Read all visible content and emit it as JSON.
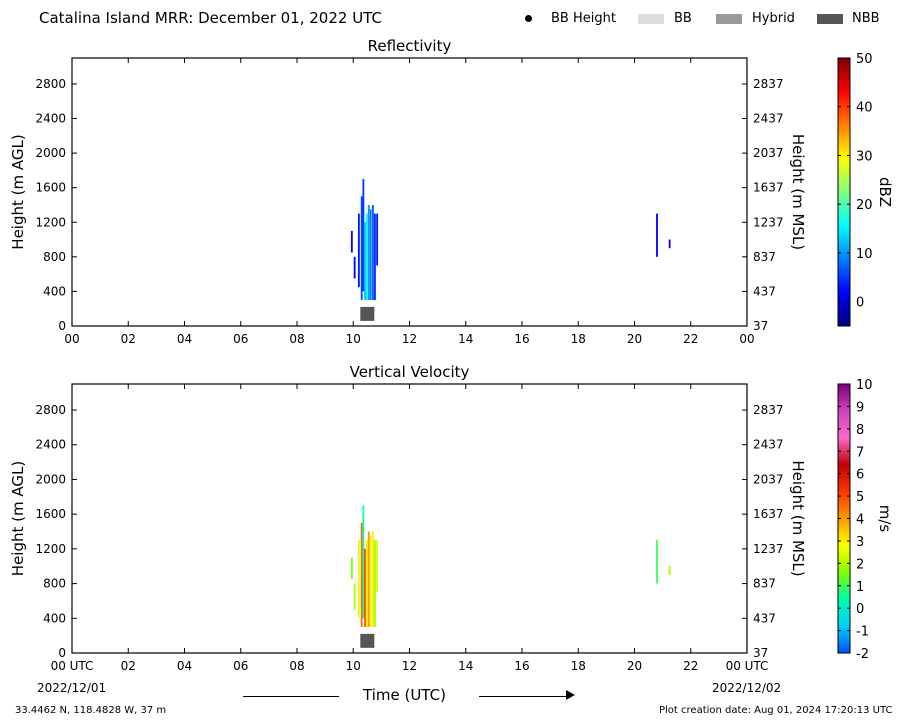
{
  "header": {
    "title": "Catalina Island MRR:  December 01, 2022 UTC",
    "legend": [
      {
        "label": "BB Height",
        "marker": "dot",
        "color": "#000000"
      },
      {
        "label": "BB",
        "marker": "swatch",
        "color": "#dddddd"
      },
      {
        "label": "Hybrid",
        "marker": "swatch",
        "color": "#999999"
      },
      {
        "label": "NBB",
        "marker": "swatch",
        "color": "#555555"
      }
    ]
  },
  "footer": {
    "location": "33.4462 N, 118.4828 W, 37 m",
    "creation": "Plot creation date: Aug 01, 2024 17:20:13 UTC",
    "xlabel": "Time (UTC)",
    "start_date": "2022/12/01",
    "end_date": "2022/12/02"
  },
  "chart_data": [
    {
      "type": "heatmap",
      "title": "Reflectivity",
      "ylabel": "Height (m AGL)",
      "ylabel_right": "Height (m MSL)",
      "xlim": [
        0,
        24
      ],
      "ylim": [
        0,
        3100
      ],
      "x_ticks": [
        "00",
        "02",
        "04",
        "06",
        "08",
        "10",
        "12",
        "14",
        "16",
        "18",
        "20",
        "22",
        "00"
      ],
      "y_ticks": [
        0,
        400,
        800,
        1200,
        1600,
        2000,
        2400,
        2800
      ],
      "y_ticks_right": [
        37,
        437,
        837,
        1237,
        1637,
        2037,
        2437,
        2837
      ],
      "colorbar": {
        "label": "dBZ",
        "range": [
          -5,
          50
        ],
        "ticks": [
          0,
          10,
          20,
          30,
          40,
          50
        ],
        "colormap": [
          "#00007f",
          "#0000ff",
          "#007fff",
          "#00ffff",
          "#7fff7f",
          "#ffff00",
          "#ff7f00",
          "#ff0000",
          "#7f0000"
        ]
      },
      "nbb_marker": {
        "time": 10.5,
        "height": 140,
        "color": "#555555"
      },
      "cells": [
        {
          "time": 9.95,
          "h0": 850,
          "h1": 1100,
          "v": 2
        },
        {
          "time": 10.05,
          "h0": 550,
          "h1": 800,
          "v": 2
        },
        {
          "time": 10.2,
          "h0": 450,
          "h1": 1300,
          "v": 3
        },
        {
          "time": 10.3,
          "h0": 300,
          "h1": 1500,
          "v": 6
        },
        {
          "time": 10.36,
          "h0": 400,
          "h1": 1700,
          "v": 5
        },
        {
          "time": 10.42,
          "h0": 300,
          "h1": 1200,
          "v": 12
        },
        {
          "time": 10.48,
          "h0": 300,
          "h1": 1300,
          "v": 16
        },
        {
          "time": 10.55,
          "h0": 300,
          "h1": 1400,
          "v": 10
        },
        {
          "time": 10.62,
          "h0": 300,
          "h1": 1350,
          "v": 8
        },
        {
          "time": 10.7,
          "h0": 300,
          "h1": 1400,
          "v": 7
        },
        {
          "time": 10.77,
          "h0": 300,
          "h1": 1300,
          "v": 4
        },
        {
          "time": 10.85,
          "h0": 700,
          "h1": 1300,
          "v": 3
        },
        {
          "time": 20.8,
          "h0": 800,
          "h1": 1300,
          "v": 2
        },
        {
          "time": 21.25,
          "h0": 900,
          "h1": 1000,
          "v": 2
        }
      ]
    },
    {
      "type": "heatmap",
      "title": "Vertical Velocity",
      "ylabel": "Height (m AGL)",
      "ylabel_right": "Height (m MSL)",
      "xlim": [
        0,
        24
      ],
      "ylim": [
        0,
        3100
      ],
      "x_ticks": [
        "00 UTC",
        "02",
        "04",
        "06",
        "08",
        "10",
        "12",
        "14",
        "16",
        "18",
        "20",
        "22",
        "00 UTC"
      ],
      "y_ticks": [
        0,
        400,
        800,
        1200,
        1600,
        2000,
        2400,
        2800
      ],
      "y_ticks_right": [
        37,
        437,
        837,
        1237,
        1637,
        2037,
        2437,
        2837
      ],
      "colorbar": {
        "label": "m/s",
        "range": [
          -2,
          10
        ],
        "ticks": [
          -2,
          -1,
          0,
          1,
          2,
          3,
          4,
          5,
          6,
          7,
          8,
          9,
          10
        ],
        "colormap": [
          "#0050ff",
          "#00d0ff",
          "#00ffb0",
          "#7fff00",
          "#ffff00",
          "#ff9900",
          "#ff3300",
          "#c00000",
          "#ff66cc",
          "#cc44bb",
          "#800080"
        ]
      },
      "nbb_marker": {
        "time": 10.5,
        "height": 140,
        "color": "#555555"
      },
      "cells": [
        {
          "time": 9.95,
          "h0": 850,
          "h1": 1100,
          "v": 1.5
        },
        {
          "time": 10.05,
          "h0": 500,
          "h1": 800,
          "v": 2
        },
        {
          "time": 10.2,
          "h0": 400,
          "h1": 1300,
          "v": 2.5
        },
        {
          "time": 10.3,
          "h0": 300,
          "h1": 1500,
          "v": 4.5
        },
        {
          "time": 10.36,
          "h0": 400,
          "h1": 1700,
          "v": 0.5
        },
        {
          "time": 10.42,
          "h0": 300,
          "h1": 1200,
          "v": 5
        },
        {
          "time": 10.48,
          "h0": 300,
          "h1": 1300,
          "v": 3
        },
        {
          "time": 10.55,
          "h0": 300,
          "h1": 1400,
          "v": 4
        },
        {
          "time": 10.62,
          "h0": 300,
          "h1": 1350,
          "v": 2.5
        },
        {
          "time": 10.7,
          "h0": 300,
          "h1": 1400,
          "v": 3
        },
        {
          "time": 10.77,
          "h0": 300,
          "h1": 1300,
          "v": 2
        },
        {
          "time": 10.85,
          "h0": 700,
          "h1": 1300,
          "v": 2.5
        },
        {
          "time": 20.8,
          "h0": 800,
          "h1": 1300,
          "v": 1
        },
        {
          "time": 21.25,
          "h0": 900,
          "h1": 1000,
          "v": 2
        }
      ]
    }
  ]
}
